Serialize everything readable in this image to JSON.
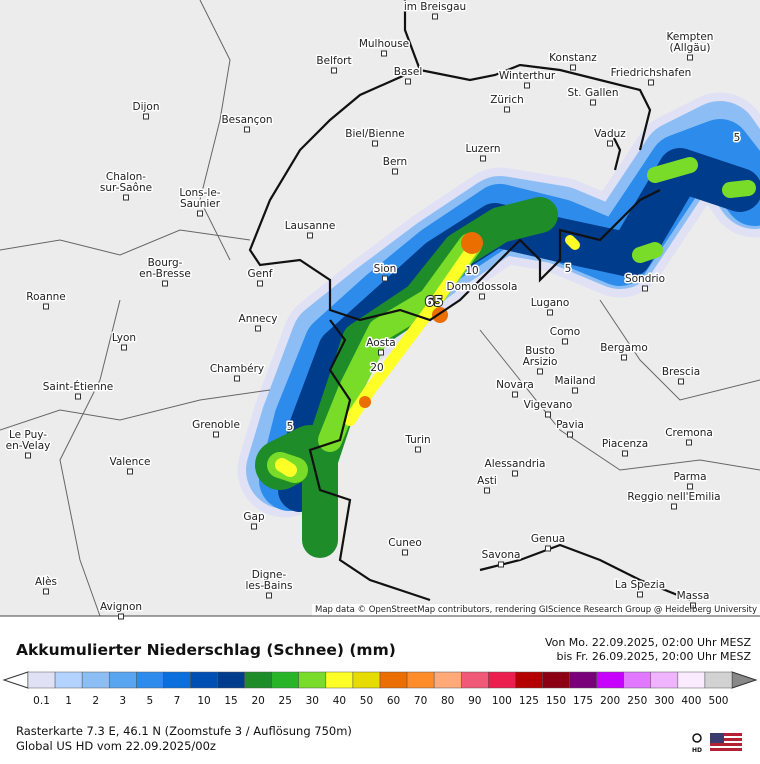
{
  "map": {
    "cities": [
      [
        "im Breisgau"
      ],
      [
        "Mulhouse"
      ],
      [
        "Belfort"
      ],
      [
        "Basel"
      ],
      [
        "Konstanz"
      ],
      [
        "Winterthur"
      ],
      [
        "Kempten",
        "(Allgäu)"
      ],
      [
        "Friedrichshafen"
      ],
      [
        "Dijon"
      ],
      [
        "Besançon"
      ],
      [
        "Zürich"
      ],
      [
        "St. Gallen"
      ],
      [
        "Biel/Bienne"
      ],
      [
        "Vaduz"
      ],
      [
        "Luzern"
      ],
      [
        "Bern"
      ],
      [
        "Chalon-",
        "sur-Saône"
      ],
      [
        "Lons-le-",
        "Saunier"
      ],
      [
        "Lausanne"
      ],
      [
        "Bourg-",
        "en-Bresse"
      ],
      [
        "Genf"
      ],
      [
        "Sion"
      ],
      [
        "Roanne"
      ],
      [
        "Domodossola"
      ],
      [
        "Lugano"
      ],
      [
        "Sondrio"
      ],
      [
        "Annecy"
      ],
      [
        "Como"
      ],
      [
        "Lyon"
      ],
      [
        "Aosta"
      ],
      [
        "Busto",
        "Arsizio"
      ],
      [
        "Bergamo"
      ],
      [
        "Mailand"
      ],
      [
        "Novara"
      ],
      [
        "Brescia"
      ],
      [
        "Chambéry"
      ],
      [
        "Saint-Étienne"
      ],
      [
        "Vigevano"
      ],
      [
        "Grenoble"
      ],
      [
        "Pavia"
      ],
      [
        "Le Puy-",
        "en-Velay"
      ],
      [
        "Turin"
      ],
      [
        "Piacenza"
      ],
      [
        "Cremona"
      ],
      [
        "Valence"
      ],
      [
        "Alessandria"
      ],
      [
        "Asti"
      ],
      [
        "Parma"
      ],
      [
        "Reggio nell'Emilia"
      ],
      [
        "Gap"
      ],
      [
        "Genua"
      ],
      [
        "Cuneo"
      ],
      [
        "Savona"
      ],
      [
        "Alès"
      ],
      [
        "Digne-",
        "les-Bains"
      ],
      [
        "La Spezia"
      ],
      [
        "Massa"
      ],
      [
        "Avignon"
      ]
    ],
    "contour_labels": [
      "65",
      "5",
      "5",
      "5",
      "20",
      "10"
    ],
    "attribution": "Map data © OpenStreetMap contributors, rendering GIScience Research Group @ Heidelberg University"
  },
  "legend": {
    "title": "Akkumulierter Niederschlag (Schnee) (mm)",
    "period": [
      "Von Mo. 22.09.2025, 02:00 Uhr MESZ",
      "bis Fr. 26.09.2025, 20:00 Uhr MESZ"
    ],
    "bins": [
      {
        "label": "0.1",
        "color": "#e1e1f5"
      },
      {
        "label": "1",
        "color": "#b4d2ff"
      },
      {
        "label": "2",
        "color": "#8cbef5"
      },
      {
        "label": "3",
        "color": "#5aa5f0"
      },
      {
        "label": "5",
        "color": "#2d8ceb"
      },
      {
        "label": "7",
        "color": "#0a6edc"
      },
      {
        "label": "10",
        "color": "#0050b4"
      },
      {
        "label": "15",
        "color": "#003c8c"
      },
      {
        "label": "20",
        "color": "#1e8c28"
      },
      {
        "label": "25",
        "color": "#28b428"
      },
      {
        "label": "30",
        "color": "#78dc28"
      },
      {
        "label": "40",
        "color": "#ffff28"
      },
      {
        "label": "50",
        "color": "#e6dc00"
      },
      {
        "label": "60",
        "color": "#eb6e00"
      },
      {
        "label": "70",
        "color": "#ff8c28"
      },
      {
        "label": "80",
        "color": "#ffaa78"
      },
      {
        "label": "90",
        "color": "#f05a78"
      },
      {
        "label": "100",
        "color": "#eb1e50"
      },
      {
        "label": "125",
        "color": "#b40000"
      },
      {
        "label": "150",
        "color": "#8c0014"
      },
      {
        "label": "175",
        "color": "#780078"
      },
      {
        "label": "200",
        "color": "#c800ff"
      },
      {
        "label": "250",
        "color": "#e178ff"
      },
      {
        "label": "300",
        "color": "#f0b4ff"
      },
      {
        "label": "400",
        "color": "#faebff"
      },
      {
        "label": "500",
        "color": "#d2d2d2"
      }
    ],
    "raster_info": "Rasterkarte 7.3 E, 46.1 N (Zoomstufe 3 / Auflösung 750m)",
    "model_run": "Global US HD vom  22.09.2025/00z"
  }
}
